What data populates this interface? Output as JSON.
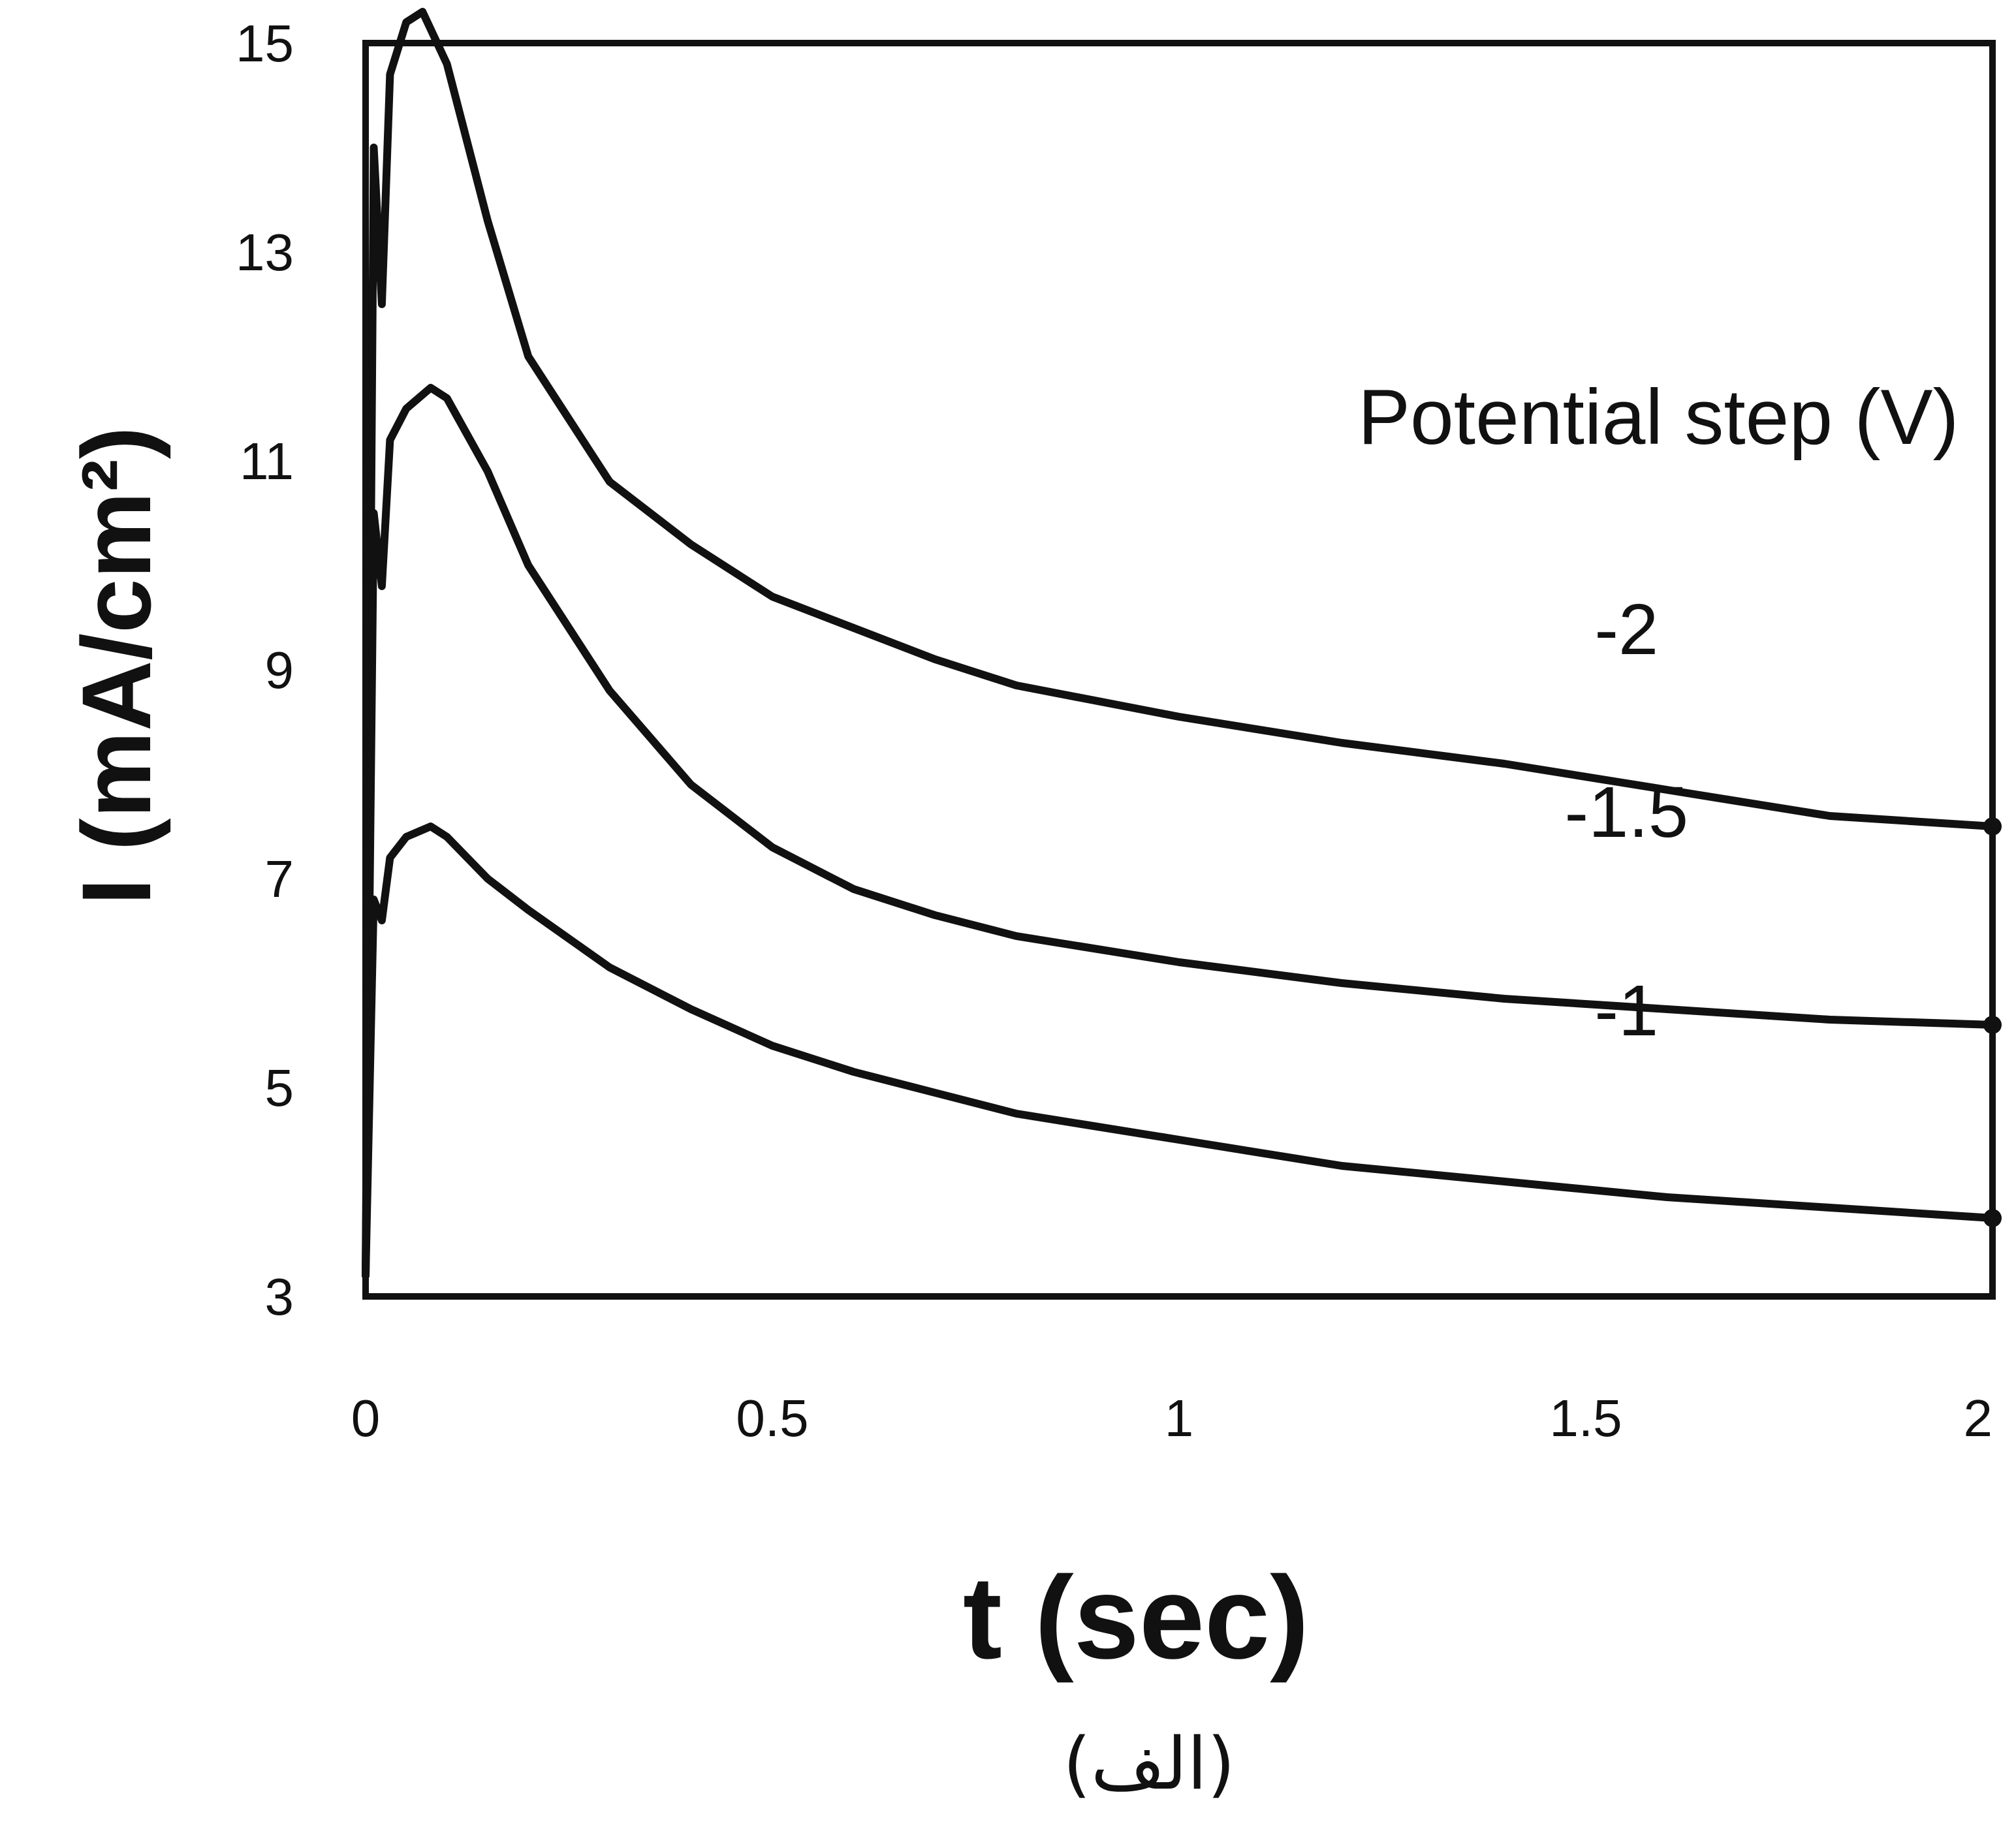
{
  "chart_data": {
    "type": "line",
    "title": "",
    "xlabel": "t (sec)",
    "ylabel": "I (mA/cm²)",
    "xlim": [
      0,
      2
    ],
    "ylim": [
      3,
      15
    ],
    "x_ticks": [
      "0",
      "0.5",
      "1",
      "1.5",
      "2"
    ],
    "y_ticks": [
      "3",
      "5",
      "7",
      "9",
      "11",
      "13",
      "15"
    ],
    "grid": false,
    "legend_title": "Potential step (V)",
    "series": [
      {
        "name": "-2",
        "x": [
          0,
          0.01,
          0.02,
          0.03,
          0.05,
          0.07,
          0.1,
          0.15,
          0.2,
          0.3,
          0.4,
          0.5,
          0.6,
          0.7,
          0.8,
          1.0,
          1.2,
          1.4,
          1.6,
          1.8,
          2.0
        ],
        "y": [
          3.2,
          14.0,
          12.5,
          14.7,
          15.2,
          15.3,
          14.8,
          13.3,
          12.0,
          10.8,
          10.2,
          9.7,
          9.4,
          9.1,
          8.85,
          8.55,
          8.3,
          8.1,
          7.85,
          7.6,
          7.5
        ]
      },
      {
        "name": "-1.5",
        "x": [
          0,
          0.01,
          0.02,
          0.03,
          0.05,
          0.08,
          0.1,
          0.15,
          0.2,
          0.3,
          0.4,
          0.5,
          0.6,
          0.7,
          0.8,
          1.0,
          1.2,
          1.4,
          1.6,
          1.8,
          2.0
        ],
        "y": [
          3.2,
          10.5,
          9.8,
          11.2,
          11.5,
          11.7,
          11.6,
          10.9,
          10.0,
          8.8,
          7.9,
          7.3,
          6.9,
          6.65,
          6.45,
          6.2,
          6.0,
          5.85,
          5.75,
          5.65,
          5.6
        ]
      },
      {
        "name": "-1",
        "x": [
          0,
          0.01,
          0.02,
          0.03,
          0.05,
          0.08,
          0.1,
          0.15,
          0.2,
          0.3,
          0.4,
          0.5,
          0.6,
          0.7,
          0.8,
          1.0,
          1.2,
          1.4,
          1.6,
          1.8,
          2.0
        ],
        "y": [
          3.2,
          6.8,
          6.6,
          7.2,
          7.4,
          7.5,
          7.4,
          7.0,
          6.7,
          6.15,
          5.75,
          5.4,
          5.15,
          4.95,
          4.75,
          4.5,
          4.25,
          4.1,
          3.95,
          3.85,
          3.75
        ]
      }
    ],
    "caption": "(الف)"
  }
}
